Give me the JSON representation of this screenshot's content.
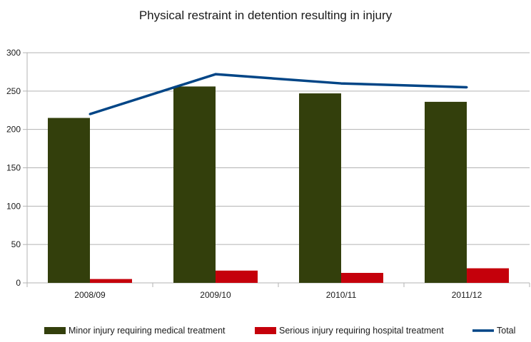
{
  "chart_data": {
    "type": "bar",
    "title": "Physical restraint in detention resulting in injury",
    "xlabel": "",
    "ylabel": "",
    "categories": [
      "2008/09",
      "2009/10",
      "2010/11",
      "2011/12"
    ],
    "ylim": [
      0,
      300
    ],
    "yticks": [
      0,
      50,
      100,
      150,
      200,
      250,
      300
    ],
    "grid": true,
    "legend_position": "bottom",
    "series": [
      {
        "name": "Minor injury requiring medical treatment",
        "kind": "bar",
        "color": "#333f0c",
        "values": [
          215,
          256,
          247,
          236
        ]
      },
      {
        "name": "Serious injury requiring hospital treatment",
        "kind": "bar",
        "color": "#c5000b",
        "values": [
          5,
          16,
          13,
          19
        ]
      },
      {
        "name": "Total",
        "kind": "line",
        "color": "#004586",
        "values": [
          220,
          272,
          260,
          255
        ]
      }
    ]
  }
}
